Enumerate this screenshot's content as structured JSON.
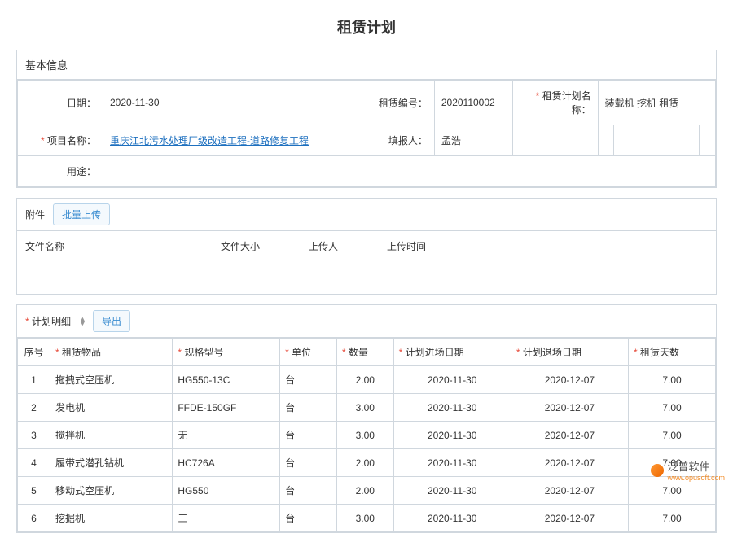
{
  "title": "租赁计划",
  "basicInfo": {
    "header": "基本信息",
    "labels": {
      "date": "日期：",
      "rentNo": "租赁编号：",
      "planName": "租赁计划名称：",
      "projectName": "项目名称：",
      "reporter": "填报人：",
      "usage": "用途："
    },
    "values": {
      "date": "2020-11-30",
      "rentNo": "2020110002",
      "planName": "装载机 挖机 租赁",
      "projectName": "重庆江北污水处理厂级改造工程-道路修复工程",
      "reporter": "孟浩",
      "usage": ""
    }
  },
  "attachments": {
    "label": "附件",
    "uploadBtn": "批量上传",
    "columns": {
      "name": "文件名称",
      "size": "文件大小",
      "uploader": "上传人",
      "time": "上传时间"
    }
  },
  "details": {
    "header": "计划明细",
    "exportBtn": "导出",
    "columns": {
      "seq": "序号",
      "item": "租赁物品",
      "spec": "规格型号",
      "unit": "单位",
      "qty": "数量",
      "inDate": "计划进场日期",
      "outDate": "计划退场日期",
      "days": "租赁天数"
    },
    "rows": [
      {
        "seq": "1",
        "item": "拖拽式空压机",
        "spec": "HG550-13C",
        "unit": "台",
        "qty": "2.00",
        "inDate": "2020-11-30",
        "outDate": "2020-12-07",
        "days": "7.00"
      },
      {
        "seq": "2",
        "item": "发电机",
        "spec": "FFDE-150GF",
        "unit": "台",
        "qty": "3.00",
        "inDate": "2020-11-30",
        "outDate": "2020-12-07",
        "days": "7.00"
      },
      {
        "seq": "3",
        "item": "搅拌机",
        "spec": "无",
        "unit": "台",
        "qty": "3.00",
        "inDate": "2020-11-30",
        "outDate": "2020-12-07",
        "days": "7.00"
      },
      {
        "seq": "4",
        "item": "履带式潜孔钻机",
        "spec": "HC726A",
        "unit": "台",
        "qty": "2.00",
        "inDate": "2020-11-30",
        "outDate": "2020-12-07",
        "days": "7.00"
      },
      {
        "seq": "5",
        "item": "移动式空压机",
        "spec": "HG550",
        "unit": "台",
        "qty": "2.00",
        "inDate": "2020-11-30",
        "outDate": "2020-12-07",
        "days": "7.00"
      },
      {
        "seq": "6",
        "item": "挖掘机",
        "spec": "三一",
        "unit": "台",
        "qty": "3.00",
        "inDate": "2020-11-30",
        "outDate": "2020-12-07",
        "days": "7.00"
      }
    ]
  },
  "watermark": {
    "brand": "泛普软件",
    "url": "www.opusoft.com"
  }
}
